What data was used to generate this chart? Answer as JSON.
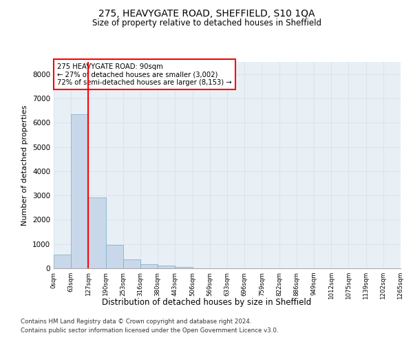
{
  "title": "275, HEAVYGATE ROAD, SHEFFIELD, S10 1QA",
  "subtitle": "Size of property relative to detached houses in Sheffield",
  "xlabel": "Distribution of detached houses by size in Sheffield",
  "ylabel": "Number of detached properties",
  "bar_color": "#c8d8ea",
  "bar_edge_color": "#7aaac8",
  "bar_values": [
    580,
    6350,
    2920,
    970,
    360,
    160,
    100,
    60,
    5,
    3,
    2,
    1,
    1,
    1,
    0,
    0,
    0,
    0,
    0,
    0
  ],
  "bin_labels": [
    "0sqm",
    "63sqm",
    "127sqm",
    "190sqm",
    "253sqm",
    "316sqm",
    "380sqm",
    "443sqm",
    "506sqm",
    "569sqm",
    "633sqm",
    "696sqm",
    "759sqm",
    "822sqm",
    "886sqm",
    "949sqm",
    "1012sqm",
    "1075sqm",
    "1139sqm",
    "1202sqm",
    "1265sqm"
  ],
  "ylim": [
    0,
    8500
  ],
  "yticks": [
    0,
    1000,
    2000,
    3000,
    4000,
    5000,
    6000,
    7000,
    8000
  ],
  "vline_x": 2,
  "annotation_title": "275 HEAVYGATE ROAD: 90sqm",
  "annotation_line1": "← 27% of detached houses are smaller (3,002)",
  "annotation_line2": "72% of semi-detached houses are larger (8,153) →",
  "grid_color": "#d8e4ed",
  "background_color": "#e8f0f6",
  "footer_line1": "Contains HM Land Registry data © Crown copyright and database right 2024.",
  "footer_line2": "Contains public sector information licensed under the Open Government Licence v3.0."
}
